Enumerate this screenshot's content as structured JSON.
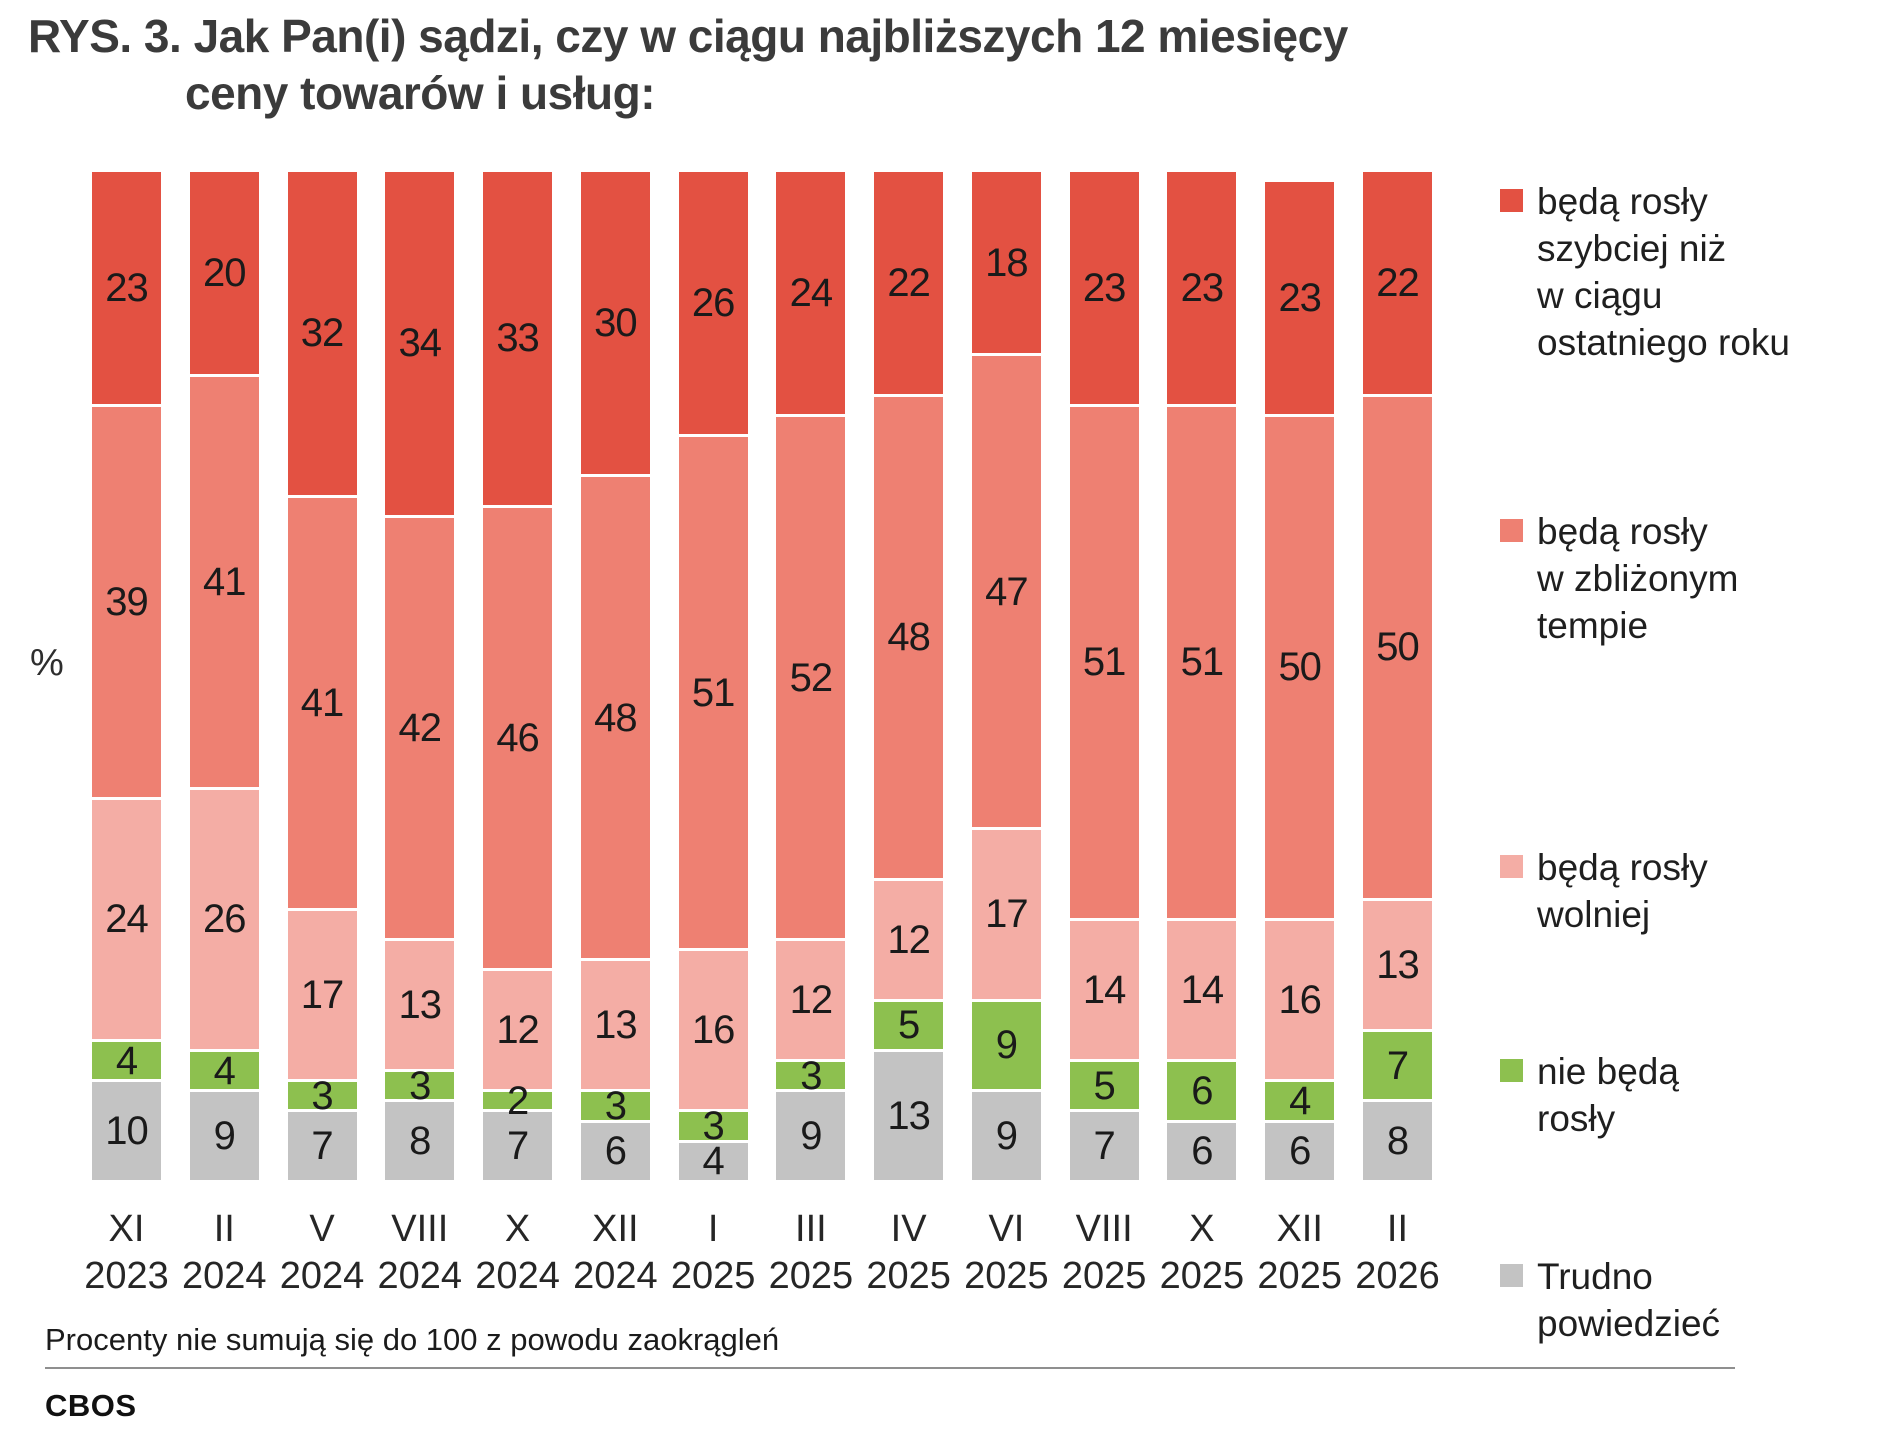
{
  "title": {
    "line1": "RYS. 3. Jak Pan(i) sądzi, czy w ciągu najbliższych 12 miesięcy",
    "line2": "ceny towarów i usług:"
  },
  "y_axis_label": "%",
  "footnote": "Procenty nie sumują się do 100 z powodu zaokrągleń",
  "brand": "CBOS",
  "chart_data": {
    "type": "bar",
    "stacked": true,
    "unit": "%",
    "ylim": [
      0,
      100
    ],
    "grid": false,
    "legend_position": "right",
    "categories": [
      {
        "month": "XI",
        "year": "2023"
      },
      {
        "month": "II",
        "year": "2024"
      },
      {
        "month": "V",
        "year": "2024"
      },
      {
        "month": "VIII",
        "year": "2024"
      },
      {
        "month": "X",
        "year": "2024"
      },
      {
        "month": "XII",
        "year": "2024"
      },
      {
        "month": "I",
        "year": "2025"
      },
      {
        "month": "III",
        "year": "2025"
      },
      {
        "month": "IV",
        "year": "2025"
      },
      {
        "month": "VI",
        "year": "2025"
      },
      {
        "month": "VIII",
        "year": "2025"
      },
      {
        "month": "X",
        "year": "2025"
      },
      {
        "month": "XII",
        "year": "2025"
      },
      {
        "month": "II",
        "year": "2026"
      }
    ],
    "series": [
      {
        "key": "beda-rosly-szybciej",
        "name": "będą rosły szybciej niż w ciągu ostatniego roku",
        "legend_lines": [
          "będą rosły",
          "szybciej niż",
          "w ciągu",
          "ostatniego roku"
        ],
        "color": "#e35142",
        "values": [
          23,
          20,
          32,
          34,
          33,
          30,
          26,
          24,
          22,
          18,
          23,
          23,
          23,
          22
        ]
      },
      {
        "key": "beda-rosly-w-zblizonym-tempie",
        "name": "będą rosły w zbliżonym tempie",
        "legend_lines": [
          "będą rosły",
          "w zbliżonym",
          "tempie"
        ],
        "color": "#ee8072",
        "values": [
          39,
          41,
          41,
          42,
          46,
          48,
          51,
          52,
          48,
          47,
          51,
          51,
          50,
          50
        ]
      },
      {
        "key": "beda-rosly-wolniej",
        "name": "będą rosły wolniej",
        "legend_lines": [
          "będą rosły",
          "wolniej"
        ],
        "color": "#f4ada5",
        "values": [
          24,
          26,
          17,
          13,
          12,
          13,
          16,
          12,
          12,
          17,
          14,
          14,
          16,
          13
        ]
      },
      {
        "key": "nie-beda-rosly",
        "name": "nie będą rosły",
        "legend_lines": [
          "nie będą",
          "rosły"
        ],
        "color": "#8dc04f",
        "values": [
          4,
          4,
          3,
          3,
          2,
          3,
          3,
          3,
          5,
          9,
          5,
          6,
          4,
          7
        ]
      },
      {
        "key": "trudno-powiedziec",
        "name": "Trudno powiedzieć",
        "legend_lines": [
          "Trudno",
          "powiedzieć"
        ],
        "color": "#c3c3c3",
        "values": [
          10,
          9,
          7,
          8,
          7,
          6,
          4,
          9,
          13,
          9,
          7,
          6,
          6,
          8
        ]
      }
    ]
  }
}
